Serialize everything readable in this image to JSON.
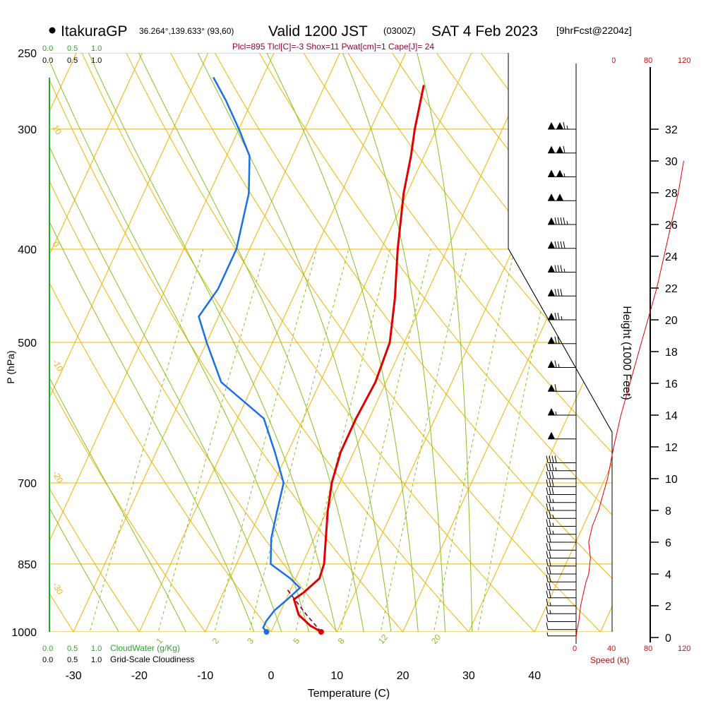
{
  "header": {
    "station": "ItakuraGP",
    "coords": "36.264°,139.633° (93,60)",
    "valid": "Valid 1200 JST",
    "utc": "(0300Z)",
    "date": "SAT 4 Feb 2023",
    "forecast": "[9hrFcst@2204z]",
    "indices": "Plcl=895 Tlcl[C]=-3 Shox=11 Pwat[cm]=1 Cape[J]= 24"
  },
  "colors": {
    "temperature": "#e00000",
    "dewpoint": "#1a6fe8",
    "parcel": "#7a0033",
    "isotherm_isobar": "#f0b400",
    "moist_adiabat": "#88c020",
    "mixing_ratio": "#88c020",
    "cloud": "#22aa22",
    "speed": "#e00000",
    "indices": "#990033"
  },
  "labels": {
    "cloud_scale_top": [
      "0.0",
      "0.5",
      "1.0"
    ],
    "cloud_scale_top_black": [
      "0.0",
      "0.5",
      "1.0"
    ],
    "cloud_water": "CloudWater (g/Kg)",
    "cloudiness": "Grid-Scale Cloudiness",
    "cloud_scale_bottom": [
      "0.0",
      "0.5",
      "1.0"
    ],
    "cloud_scale_bottom_black": [
      "0.0",
      "0.5",
      "1.0"
    ],
    "speed_label": "Speed (kt)",
    "speed_ticks": [
      "0",
      "40",
      "80",
      "120"
    ]
  },
  "chart_data": {
    "type": "skew-t",
    "title": "ItakuraGP Valid 1200 JST SAT 4 Feb 2023",
    "xlabel": "Temperature (C)",
    "ylabel": "P (hPa)",
    "y2label": "Height (1000 Feet)",
    "xlim": [
      -35,
      45
    ],
    "pressure_range": [
      250,
      1000
    ],
    "log_pressure": true,
    "x_ticks": [
      -30,
      -20,
      -10,
      0,
      10,
      20,
      30,
      40
    ],
    "pressure_ticks": [
      250,
      300,
      400,
      500,
      700,
      850,
      1000
    ],
    "height_ticks": [
      0,
      2,
      4,
      6,
      8,
      10,
      12,
      14,
      16,
      18,
      20,
      22,
      24,
      26,
      28,
      30,
      32
    ],
    "isotherm_labels": [
      {
        "t": -10,
        "text": "-10"
      },
      {
        "t": 0,
        "text": "0"
      },
      {
        "t": 10,
        "text": "10"
      },
      {
        "t": 20,
        "text": "20"
      },
      {
        "t": 30,
        "text": "30"
      }
    ],
    "left_edge_labels": [
      "10",
      "0",
      "-10",
      "-20",
      "-30"
    ],
    "mixing_ratio_labels": [
      "1",
      "2",
      "3",
      "5",
      "8",
      "12",
      "20"
    ],
    "series": [
      {
        "name": "Temperature",
        "points": [
          [
            1000,
            7.6
          ],
          [
            985,
            5.5
          ],
          [
            960,
            3.0
          ],
          [
            925,
            1.2
          ],
          [
            910,
            2.2
          ],
          [
            880,
            3.6
          ],
          [
            850,
            3.3
          ],
          [
            800,
            1.8
          ],
          [
            750,
            0.2
          ],
          [
            700,
            -1.2
          ],
          [
            650,
            -2.0
          ],
          [
            600,
            -2.0
          ],
          [
            550,
            -1.6
          ],
          [
            500,
            -2.2
          ],
          [
            450,
            -4.5
          ],
          [
            400,
            -7.5
          ],
          [
            350,
            -10.5
          ],
          [
            320,
            -12.0
          ],
          [
            300,
            -13.3
          ],
          [
            270,
            -15.0
          ]
        ]
      },
      {
        "name": "Dewpoint",
        "points": [
          [
            1000,
            -0.7
          ],
          [
            990,
            -1.5
          ],
          [
            975,
            -1.5
          ],
          [
            950,
            -1.0
          ],
          [
            925,
            0.2
          ],
          [
            900,
            1.3
          ],
          [
            880,
            -0.8
          ],
          [
            850,
            -4.8
          ],
          [
            800,
            -6.5
          ],
          [
            750,
            -7.5
          ],
          [
            700,
            -8.5
          ],
          [
            650,
            -12.0
          ],
          [
            600,
            -16.0
          ],
          [
            550,
            -25.0
          ],
          [
            500,
            -30.0
          ],
          [
            470,
            -33.0
          ],
          [
            440,
            -32.0
          ],
          [
            400,
            -32.0
          ],
          [
            350,
            -34.0
          ],
          [
            320,
            -36.5
          ],
          [
            300,
            -40.0
          ],
          [
            280,
            -44.0
          ],
          [
            265,
            -47.5
          ]
        ]
      },
      {
        "name": "Parcel",
        "points": [
          [
            1000,
            7.6
          ],
          [
            960,
            4.2
          ],
          [
            925,
            1.3
          ],
          [
            900,
            -0.8
          ]
        ]
      }
    ],
    "wind_speed_profile": [
      [
        0,
        0
      ],
      [
        0.5,
        1
      ],
      [
        1,
        3
      ],
      [
        2,
        5
      ],
      [
        3,
        9
      ],
      [
        3.5,
        11
      ],
      [
        4,
        14
      ],
      [
        5,
        16
      ],
      [
        6,
        14
      ],
      [
        7,
        18
      ],
      [
        8,
        25
      ],
      [
        10,
        35
      ],
      [
        12,
        42
      ],
      [
        14,
        50
      ],
      [
        16,
        60
      ],
      [
        18,
        70
      ],
      [
        20,
        80
      ],
      [
        22,
        90
      ],
      [
        24,
        98
      ],
      [
        26,
        106
      ],
      [
        28,
        114
      ],
      [
        30,
        120
      ]
    ],
    "wind_barbs": [
      {
        "h": 0.1,
        "speed": 5
      },
      {
        "h": 0.5,
        "speed": 10
      },
      {
        "h": 1.0,
        "speed": 10
      },
      {
        "h": 1.5,
        "speed": 15
      },
      {
        "h": 2.0,
        "speed": 15
      },
      {
        "h": 2.5,
        "speed": 20
      },
      {
        "h": 3.0,
        "speed": 20
      },
      {
        "h": 3.5,
        "speed": 20
      },
      {
        "h": 4.0,
        "speed": 20
      },
      {
        "h": 4.5,
        "speed": 20
      },
      {
        "h": 5.0,
        "speed": 20
      },
      {
        "h": 5.5,
        "speed": 20
      },
      {
        "h": 6.0,
        "speed": 20
      },
      {
        "h": 6.5,
        "speed": 25
      },
      {
        "h": 7.0,
        "speed": 25
      },
      {
        "h": 7.5,
        "speed": 25
      },
      {
        "h": 8.0,
        "speed": 25
      },
      {
        "h": 8.5,
        "speed": 25
      },
      {
        "h": 9.0,
        "speed": 30
      },
      {
        "h": 9.5,
        "speed": 30
      },
      {
        "h": 10.0,
        "speed": 30
      },
      {
        "h": 10.5,
        "speed": 35
      },
      {
        "h": 11.0,
        "speed": 40
      },
      {
        "h": 12.5,
        "speed": 50
      },
      {
        "h": 14.0,
        "speed": 55
      },
      {
        "h": 15.5,
        "speed": 60
      },
      {
        "h": 17.0,
        "speed": 65
      },
      {
        "h": 18.5,
        "speed": 70
      },
      {
        "h": 20.0,
        "speed": 75
      },
      {
        "h": 21.5,
        "speed": 80
      },
      {
        "h": 23.0,
        "speed": 85
      },
      {
        "h": 24.5,
        "speed": 90
      },
      {
        "h": 26.0,
        "speed": 95
      },
      {
        "h": 27.5,
        "speed": 100
      },
      {
        "h": 29.0,
        "speed": 105
      },
      {
        "h": 30.5,
        "speed": 110
      },
      {
        "h": 32.0,
        "speed": 115
      }
    ]
  }
}
